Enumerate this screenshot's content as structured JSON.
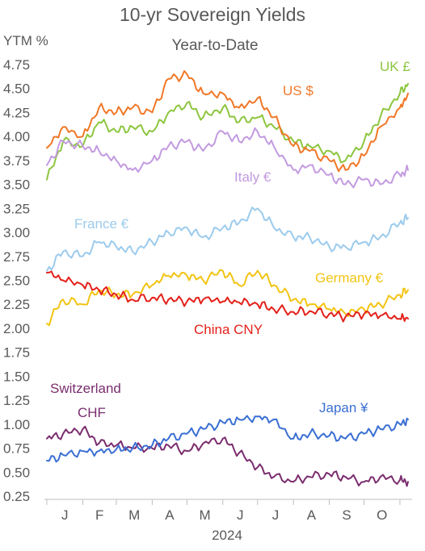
{
  "chart_data": {
    "type": "line",
    "title": "10-yr Sovereign Yields",
    "subtitle": "Year-to-Date",
    "ylabel": "YTM %",
    "xlabel": "2024",
    "ylim": [
      0.25,
      4.75
    ],
    "yticks": [
      "4.75",
      "4.50",
      "4.25",
      "4.00",
      "3.75",
      "3.50",
      "3.25",
      "3.00",
      "2.75",
      "2.50",
      "2.25",
      "2.00",
      "1.75",
      "1.50",
      "1.25",
      "1.00",
      "0.75",
      "0.50",
      "0.25"
    ],
    "x": [
      "2024-01-01",
      "2024-01-15",
      "2024-02-01",
      "2024-02-15",
      "2024-03-01",
      "2024-03-15",
      "2024-04-01",
      "2024-04-15",
      "2024-05-01",
      "2024-05-15",
      "2024-06-01",
      "2024-06-15",
      "2024-07-01",
      "2024-07-15",
      "2024-08-01",
      "2024-08-15",
      "2024-09-01",
      "2024-09-15",
      "2024-10-01",
      "2024-10-15",
      "2024-11-01",
      "2024-11-08"
    ],
    "months": [
      "J",
      "F",
      "M",
      "A",
      "M",
      "J",
      "J",
      "A",
      "S",
      "O"
    ],
    "grid": false,
    "series": [
      {
        "name": "UK £",
        "color": "#8dc63f",
        "values": [
          3.55,
          3.95,
          3.9,
          4.15,
          4.05,
          4.1,
          4.05,
          4.25,
          4.35,
          4.2,
          4.3,
          4.15,
          4.2,
          4.1,
          3.95,
          3.9,
          3.85,
          3.75,
          3.95,
          4.2,
          4.45,
          4.55
        ]
      },
      {
        "name": "US $",
        "color": "#f07828",
        "values": [
          3.88,
          4.1,
          4.0,
          4.3,
          4.25,
          4.3,
          4.25,
          4.6,
          4.65,
          4.45,
          4.45,
          4.3,
          4.4,
          4.2,
          3.9,
          3.85,
          3.75,
          3.65,
          3.8,
          4.1,
          4.3,
          4.45
        ]
      },
      {
        "name": "Italy €",
        "color": "#c39be0",
        "values": [
          3.7,
          3.95,
          3.9,
          3.85,
          3.75,
          3.65,
          3.75,
          3.9,
          3.95,
          3.85,
          4.05,
          3.95,
          4.05,
          3.9,
          3.65,
          3.7,
          3.6,
          3.5,
          3.55,
          3.5,
          3.6,
          3.65
        ]
      },
      {
        "name": "France €",
        "color": "#9ccbed",
        "values": [
          2.6,
          2.8,
          2.75,
          2.9,
          2.85,
          2.8,
          2.9,
          3.0,
          3.05,
          2.95,
          3.05,
          3.1,
          3.25,
          3.05,
          2.95,
          2.95,
          2.85,
          2.85,
          2.9,
          2.95,
          3.1,
          3.15
        ]
      },
      {
        "name": "Germany €",
        "color": "#f2c414",
        "values": [
          2.05,
          2.3,
          2.25,
          2.4,
          2.35,
          2.35,
          2.45,
          2.55,
          2.55,
          2.5,
          2.6,
          2.45,
          2.6,
          2.45,
          2.3,
          2.25,
          2.2,
          2.15,
          2.2,
          2.25,
          2.35,
          2.4
        ]
      },
      {
        "name": "China CNY",
        "color": "#e3211b",
        "values": [
          2.58,
          2.5,
          2.45,
          2.4,
          2.35,
          2.3,
          2.32,
          2.3,
          2.28,
          2.3,
          2.28,
          2.27,
          2.25,
          2.2,
          2.17,
          2.18,
          2.15,
          2.12,
          2.15,
          2.13,
          2.1,
          2.1
        ]
      },
      {
        "name": "Switzerland CHF",
        "color": "#7b2d6e",
        "values": [
          0.85,
          0.9,
          0.95,
          0.8,
          0.78,
          0.75,
          0.75,
          0.78,
          0.72,
          0.8,
          0.85,
          0.7,
          0.55,
          0.45,
          0.4,
          0.45,
          0.48,
          0.45,
          0.4,
          0.45,
          0.42,
          0.4
        ]
      },
      {
        "name": "Japan ¥",
        "color": "#3a6fd3",
        "values": [
          0.62,
          0.68,
          0.72,
          0.72,
          0.74,
          0.75,
          0.78,
          0.85,
          0.9,
          0.95,
          1.02,
          1.05,
          1.08,
          1.05,
          0.85,
          0.9,
          0.88,
          0.85,
          0.9,
          0.95,
          1.0,
          1.05
        ]
      }
    ]
  }
}
